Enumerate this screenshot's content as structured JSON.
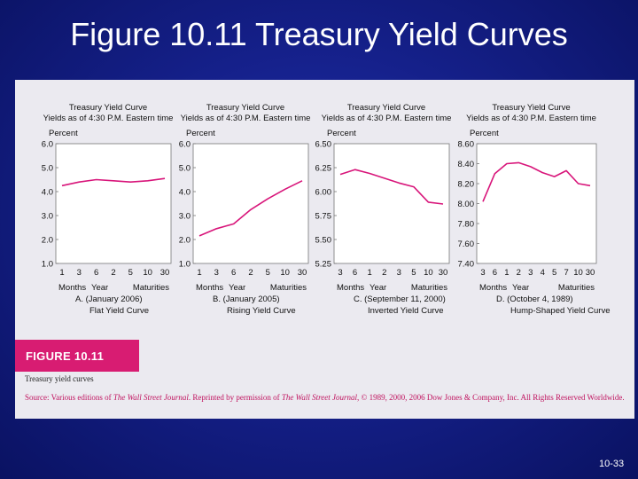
{
  "slide": {
    "title": "Figure 10.11 Treasury Yield Curves",
    "page_number": "10-33"
  },
  "figure": {
    "banner": "FIGURE 10.11",
    "caption": "Treasury yield curves",
    "source_prefix": "Source: Various editions of ",
    "source_pub1": "The Wall Street Journal",
    "source_mid": ". Reprinted by permission of ",
    "source_pub2": "The Wall Street Journal",
    "source_suffix": ", © 1989, 2000, 2006 Dow Jones & Company, Inc. All Rights Reserved Worldwide."
  },
  "colors": {
    "line": "#d8157a",
    "banner": "#d81c72",
    "panel": "#ebeaf0",
    "plot": "#ffffff",
    "background": "#15208a"
  },
  "chart_data": [
    {
      "type": "line",
      "title": "Treasury Yield Curve",
      "subtitle": "Yields as of 4:30 P.M. Eastern time",
      "ylabel": "Percent",
      "y_ticks": [
        "6.0",
        "5.0",
        "4.0",
        "3.0",
        "2.0",
        "1.0"
      ],
      "ylim": [
        1.0,
        6.0
      ],
      "x_tick_labels": [
        "1",
        "3",
        "6",
        "2",
        "5",
        "10",
        "30"
      ],
      "x_label_parts": [
        "Months",
        "Year",
        "Maturities"
      ],
      "x": [
        1,
        3,
        6,
        2,
        5,
        10,
        30
      ],
      "values": [
        4.25,
        4.4,
        4.5,
        4.45,
        4.4,
        4.45,
        4.55
      ],
      "date_label": "A. (January 2006)",
      "curve_name": "Flat Yield Curve"
    },
    {
      "type": "line",
      "title": "Treasury Yield Curve",
      "subtitle": "Yields as of 4:30 P.M. Eastern time",
      "ylabel": "Percent",
      "y_ticks": [
        "6.0",
        "5.0",
        "4.0",
        "3.0",
        "2.0",
        "1.0"
      ],
      "ylim": [
        1.0,
        6.0
      ],
      "x_tick_labels": [
        "1",
        "3",
        "6",
        "2",
        "5",
        "10",
        "30"
      ],
      "x_label_parts": [
        "Months",
        "Year",
        "Maturities"
      ],
      "x": [
        1,
        3,
        6,
        2,
        5,
        10,
        30
      ],
      "values": [
        2.15,
        2.45,
        2.65,
        3.25,
        3.7,
        4.1,
        4.45
      ],
      "date_label": "B. (January 2005)",
      "curve_name": "Rising Yield Curve"
    },
    {
      "type": "line",
      "title": "Treasury Yield Curve",
      "subtitle": "Yields as of 4:30 P.M. Eastern time",
      "ylabel": "Percent",
      "y_ticks": [
        "6.50",
        "6.25",
        "6.00",
        "5.75",
        "5.50",
        "5.25"
      ],
      "ylim": [
        5.25,
        6.5
      ],
      "x_tick_labels": [
        "3",
        "6",
        "1",
        "2",
        "3",
        "5",
        "10",
        "30"
      ],
      "x_label_parts": [
        "Months",
        "Year",
        "Maturities"
      ],
      "x": [
        3,
        6,
        1,
        2,
        3,
        5,
        10,
        30
      ],
      "values": [
        6.18,
        6.23,
        6.19,
        6.14,
        6.09,
        6.05,
        5.89,
        5.87
      ],
      "date_label": "C. (September 11, 2000)",
      "curve_name": "Inverted Yield Curve"
    },
    {
      "type": "line",
      "title": "Treasury Yield Curve",
      "subtitle": "Yields as of 4:30 P.M. Eastern time",
      "ylabel": "Percent",
      "y_ticks": [
        "8.60",
        "8.40",
        "8.20",
        "8.00",
        "7.80",
        "7.60",
        "7.40"
      ],
      "ylim": [
        7.4,
        8.6
      ],
      "x_tick_labels": [
        "3",
        "6",
        "1",
        "2",
        "3",
        "4",
        "5",
        "7",
        "10",
        "30"
      ],
      "x_label_parts": [
        "Months",
        "Year",
        "Maturities"
      ],
      "x": [
        3,
        6,
        1,
        2,
        3,
        4,
        5,
        7,
        10,
        30
      ],
      "values": [
        8.02,
        8.3,
        8.4,
        8.41,
        8.37,
        8.31,
        8.27,
        8.33,
        8.2,
        8.18
      ],
      "date_label": "D. (October 4, 1989)",
      "curve_name": "Hump-Shaped Yield Curve"
    }
  ]
}
